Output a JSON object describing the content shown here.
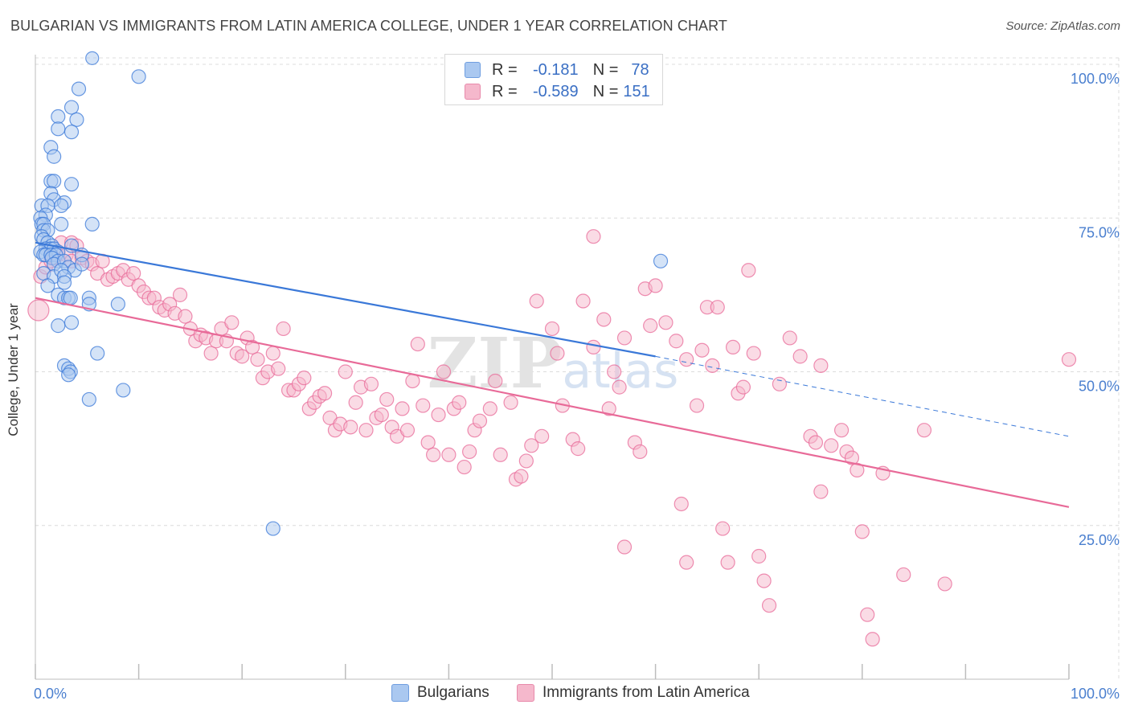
{
  "title": "BULGARIAN VS IMMIGRANTS FROM LATIN AMERICA COLLEGE, UNDER 1 YEAR CORRELATION CHART",
  "source": "Source: ZipAtlas.com",
  "colors": {
    "blue": "#3a78d8",
    "blue_fill": "#aac8f0",
    "pink": "#e86a98",
    "pink_fill": "#f5b8cc",
    "tick": "#4a7fcf",
    "grid": "#dcdcdc"
  },
  "legend_top": {
    "rows": [
      {
        "r_label": "R =",
        "r_value": "-0.181",
        "n_label": "N =",
        "n_value": "78"
      },
      {
        "r_label": "R =",
        "r_value": "-0.589",
        "n_label": "N =",
        "n_value": "151"
      }
    ]
  },
  "legend_bottom": {
    "items": [
      "Bulgarians",
      "Immigrants from Latin America"
    ]
  },
  "chart_data": {
    "type": "scatter",
    "title": "BULGARIAN VS IMMIGRANTS FROM LATIN AMERICA COLLEGE, UNDER 1 YEAR CORRELATION CHART",
    "xlabel": "",
    "ylabel": "College, Under 1 year",
    "xlim": [
      0,
      100
    ],
    "ylim": [
      0,
      100
    ],
    "x_tick_labels": [
      "0.0%",
      "100.0%"
    ],
    "y_tick_labels": [
      "25.0%",
      "50.0%",
      "75.0%",
      "100.0%"
    ],
    "y_ticks": [
      25,
      50,
      75,
      100
    ],
    "watermark": "ZIPatlas",
    "series": [
      {
        "name": "Bulgarians",
        "color": "blue",
        "trend": {
          "x0": 0,
          "y0": 71,
          "x1": 60,
          "y1": 52.5,
          "dash_to_x": 100,
          "dash_to_y": 39.5
        },
        "points": [
          [
            5.5,
            101
          ],
          [
            10,
            98
          ],
          [
            4.2,
            96
          ],
          [
            3.5,
            93
          ],
          [
            2.2,
            91.5
          ],
          [
            4,
            91
          ],
          [
            2.2,
            89.5
          ],
          [
            3.5,
            89
          ],
          [
            1.5,
            86.5
          ],
          [
            1.8,
            85
          ],
          [
            1.5,
            81
          ],
          [
            1.8,
            81
          ],
          [
            3.5,
            80.5
          ],
          [
            1.5,
            79
          ],
          [
            1.8,
            78
          ],
          [
            2.8,
            77.5
          ],
          [
            0.6,
            77
          ],
          [
            1.2,
            77
          ],
          [
            2.5,
            77
          ],
          [
            1,
            75.5
          ],
          [
            0.5,
            75
          ],
          [
            0.6,
            74
          ],
          [
            0.8,
            74
          ],
          [
            5.5,
            74
          ],
          [
            2.5,
            74
          ],
          [
            0.8,
            73
          ],
          [
            1.2,
            73
          ],
          [
            0.6,
            72
          ],
          [
            0.8,
            71.5
          ],
          [
            1.2,
            71
          ],
          [
            1.6,
            70.5
          ],
          [
            3.5,
            70.5
          ],
          [
            1,
            70
          ],
          [
            1.5,
            70
          ],
          [
            1.8,
            70
          ],
          [
            2.2,
            69.5
          ],
          [
            0.5,
            69.5
          ],
          [
            0.8,
            69
          ],
          [
            1,
            69
          ],
          [
            1.5,
            69
          ],
          [
            2,
            69
          ],
          [
            4.5,
            69
          ],
          [
            1.6,
            68.5
          ],
          [
            2.2,
            68
          ],
          [
            1.8,
            67.5
          ],
          [
            2.8,
            68
          ],
          [
            3.2,
            67
          ],
          [
            3.8,
            66.5
          ],
          [
            4.5,
            67.5
          ],
          [
            0.8,
            66
          ],
          [
            1.8,
            65.5
          ],
          [
            2.5,
            66.5
          ],
          [
            2.8,
            65.5
          ],
          [
            2.8,
            64.5
          ],
          [
            1.2,
            64
          ],
          [
            2.2,
            62.5
          ],
          [
            2.8,
            62
          ],
          [
            3.2,
            62
          ],
          [
            3.4,
            62
          ],
          [
            5.2,
            62
          ],
          [
            5.2,
            61
          ],
          [
            8,
            61
          ],
          [
            2.2,
            57.5
          ],
          [
            3.5,
            58
          ],
          [
            6,
            53
          ],
          [
            2.8,
            51
          ],
          [
            3.2,
            50.5
          ],
          [
            3.4,
            50
          ],
          [
            3.2,
            49.5
          ],
          [
            5.2,
            45.5
          ],
          [
            8.5,
            47
          ],
          [
            23,
            24.5
          ],
          [
            60.5,
            68
          ]
        ]
      },
      {
        "name": "Immigrants from Latin America",
        "color": "pink",
        "trend": {
          "x0": 0,
          "y0": 62,
          "x1": 100,
          "y1": 28
        },
        "points": [
          [
            0.3,
            60
          ],
          [
            0.5,
            65.5
          ],
          [
            1,
            67
          ],
          [
            1.5,
            68
          ],
          [
            1.8,
            68.5
          ],
          [
            2.2,
            69
          ],
          [
            2.5,
            71
          ],
          [
            3,
            69
          ],
          [
            3.5,
            68
          ],
          [
            3.5,
            71
          ],
          [
            4,
            70.5
          ],
          [
            4.5,
            68.5
          ],
          [
            5,
            68
          ],
          [
            5.5,
            67.5
          ],
          [
            6,
            66
          ],
          [
            6.5,
            68
          ],
          [
            7,
            65
          ],
          [
            7.5,
            65.5
          ],
          [
            8,
            66
          ],
          [
            8.5,
            66.5
          ],
          [
            9,
            65
          ],
          [
            9.5,
            66
          ],
          [
            10,
            64
          ],
          [
            10.5,
            63
          ],
          [
            11,
            62
          ],
          [
            11.5,
            62
          ],
          [
            12,
            60.5
          ],
          [
            12.5,
            60
          ],
          [
            13,
            61
          ],
          [
            13.5,
            59.5
          ],
          [
            14,
            62.5
          ],
          [
            14.5,
            59
          ],
          [
            15,
            57
          ],
          [
            15.5,
            55
          ],
          [
            16,
            56
          ],
          [
            16.5,
            55.5
          ],
          [
            17,
            53
          ],
          [
            17.5,
            55
          ],
          [
            18,
            57
          ],
          [
            18.5,
            55
          ],
          [
            19,
            58
          ],
          [
            19.5,
            53
          ],
          [
            20,
            52.5
          ],
          [
            20.5,
            55.5
          ],
          [
            21,
            54
          ],
          [
            21.5,
            52
          ],
          [
            22,
            49
          ],
          [
            22.5,
            50
          ],
          [
            23,
            53
          ],
          [
            23.5,
            50.5
          ],
          [
            24,
            57
          ],
          [
            24.5,
            47
          ],
          [
            25,
            47
          ],
          [
            25.5,
            48
          ],
          [
            26,
            49
          ],
          [
            26.5,
            44
          ],
          [
            27,
            45
          ],
          [
            27.5,
            46
          ],
          [
            28,
            46.5
          ],
          [
            28.5,
            42.5
          ],
          [
            29,
            40.5
          ],
          [
            29.5,
            41.5
          ],
          [
            30,
            50
          ],
          [
            30.5,
            41
          ],
          [
            31,
            45
          ],
          [
            31.5,
            47.5
          ],
          [
            32,
            40.5
          ],
          [
            32.5,
            48
          ],
          [
            33,
            42.5
          ],
          [
            33.5,
            43
          ],
          [
            34,
            45.5
          ],
          [
            34.5,
            41
          ],
          [
            35,
            39.5
          ],
          [
            35.5,
            44
          ],
          [
            36,
            40.5
          ],
          [
            36.5,
            48.5
          ],
          [
            37,
            54.5
          ],
          [
            37.5,
            44.5
          ],
          [
            38,
            38.5
          ],
          [
            38.5,
            36.5
          ],
          [
            39,
            43
          ],
          [
            39.5,
            50
          ],
          [
            40,
            36.5
          ],
          [
            40.5,
            44
          ],
          [
            41,
            45
          ],
          [
            41.5,
            34.5
          ],
          [
            42,
            37
          ],
          [
            42.5,
            40.5
          ],
          [
            43,
            42
          ],
          [
            44,
            44
          ],
          [
            44.5,
            48.5
          ],
          [
            45,
            36.5
          ],
          [
            46,
            45
          ],
          [
            46.5,
            32.5
          ],
          [
            47,
            33
          ],
          [
            47.5,
            35.5
          ],
          [
            48,
            38
          ],
          [
            48.5,
            61.5
          ],
          [
            49,
            39.5
          ],
          [
            50,
            57
          ],
          [
            50.5,
            53
          ],
          [
            51,
            44.5
          ],
          [
            52,
            39
          ],
          [
            52.5,
            37.5
          ],
          [
            53,
            61.5
          ],
          [
            54,
            54
          ],
          [
            55,
            58.5
          ],
          [
            55.5,
            44
          ],
          [
            56,
            50
          ],
          [
            56.5,
            47.5
          ],
          [
            57,
            55.5
          ],
          [
            58,
            38.5
          ],
          [
            58.5,
            37
          ],
          [
            59,
            63.5
          ],
          [
            59.5,
            57.5
          ],
          [
            60,
            64
          ],
          [
            61,
            58
          ],
          [
            62,
            55
          ],
          [
            63,
            52
          ],
          [
            64,
            44.5
          ],
          [
            64.5,
            53.5
          ],
          [
            65,
            60.5
          ],
          [
            65.5,
            51
          ],
          [
            66,
            60.5
          ],
          [
            66.5,
            24.5
          ],
          [
            67,
            19
          ],
          [
            67.5,
            54
          ],
          [
            68,
            46.5
          ],
          [
            68.5,
            47.5
          ],
          [
            69,
            66.5
          ],
          [
            69.5,
            53
          ],
          [
            70,
            20
          ],
          [
            70.5,
            16
          ],
          [
            71,
            12
          ],
          [
            72,
            48
          ],
          [
            73,
            55.5
          ],
          [
            74,
            52.5
          ],
          [
            75,
            39.5
          ],
          [
            75.5,
            38.5
          ],
          [
            76,
            51
          ],
          [
            77,
            38
          ],
          [
            78,
            40.5
          ],
          [
            78.5,
            37
          ],
          [
            79,
            36
          ],
          [
            79.5,
            34
          ],
          [
            80,
            24
          ],
          [
            80.5,
            10.5
          ],
          [
            81,
            6.5
          ],
          [
            84,
            17
          ],
          [
            88,
            15.5
          ],
          [
            100,
            52
          ],
          [
            54,
            72
          ],
          [
            57,
            21.5
          ],
          [
            62.5,
            28.5
          ],
          [
            63,
            19
          ],
          [
            76,
            30.5
          ],
          [
            82,
            33.5
          ],
          [
            86,
            40.5
          ]
        ]
      }
    ]
  }
}
